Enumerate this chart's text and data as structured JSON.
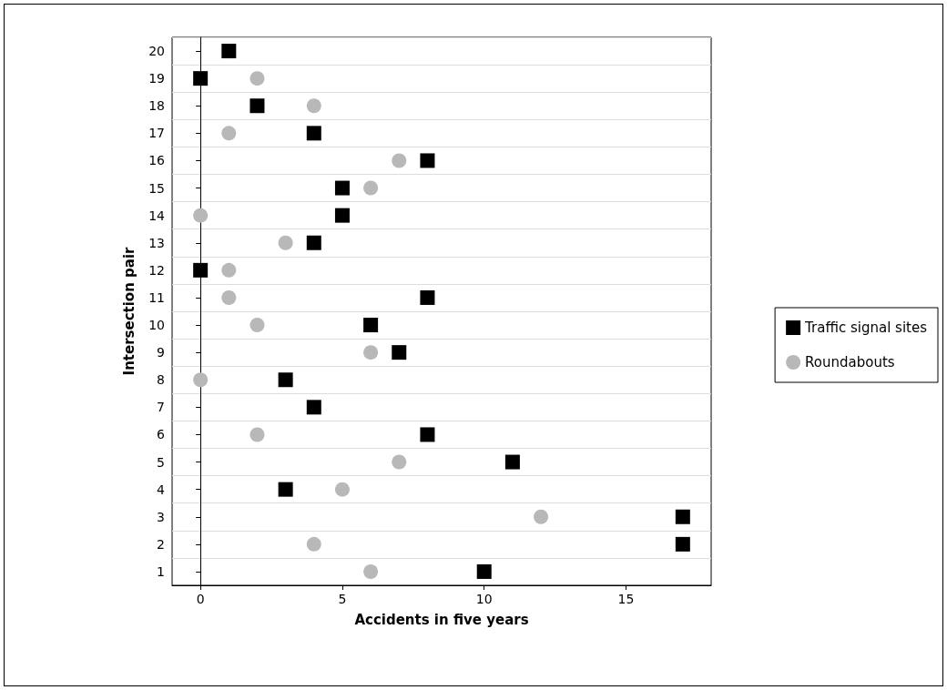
{
  "chart_data": {
    "type": "scatter",
    "orientation": "horizontal",
    "xlabel": "Accidents in five years",
    "ylabel": "Intersection pair",
    "categories": [
      "20",
      "19",
      "18",
      "17",
      "16",
      "15",
      "14",
      "13",
      "12",
      "11",
      "10",
      "9",
      "8",
      "7",
      "6",
      "5",
      "4",
      "3",
      "2",
      "1"
    ],
    "series": [
      {
        "name": "Traffic signal sites",
        "color": "#000000",
        "marker": "square",
        "values": [
          1,
          0,
          2,
          4,
          8,
          5,
          5,
          4,
          0,
          8,
          6,
          7,
          3,
          4,
          8,
          11,
          3,
          17,
          17,
          10
        ]
      },
      {
        "name": "Roundabouts",
        "color": "#b8b8b8",
        "marker": "circle",
        "values": [
          null,
          2,
          4,
          1,
          7,
          6,
          0,
          3,
          1,
          1,
          2,
          6,
          0,
          null,
          2,
          7,
          5,
          12,
          4,
          6
        ]
      }
    ],
    "xlim": [
      -1,
      18
    ],
    "xticks": [
      0,
      5,
      10,
      15
    ],
    "grid": "y",
    "legend": "right"
  }
}
